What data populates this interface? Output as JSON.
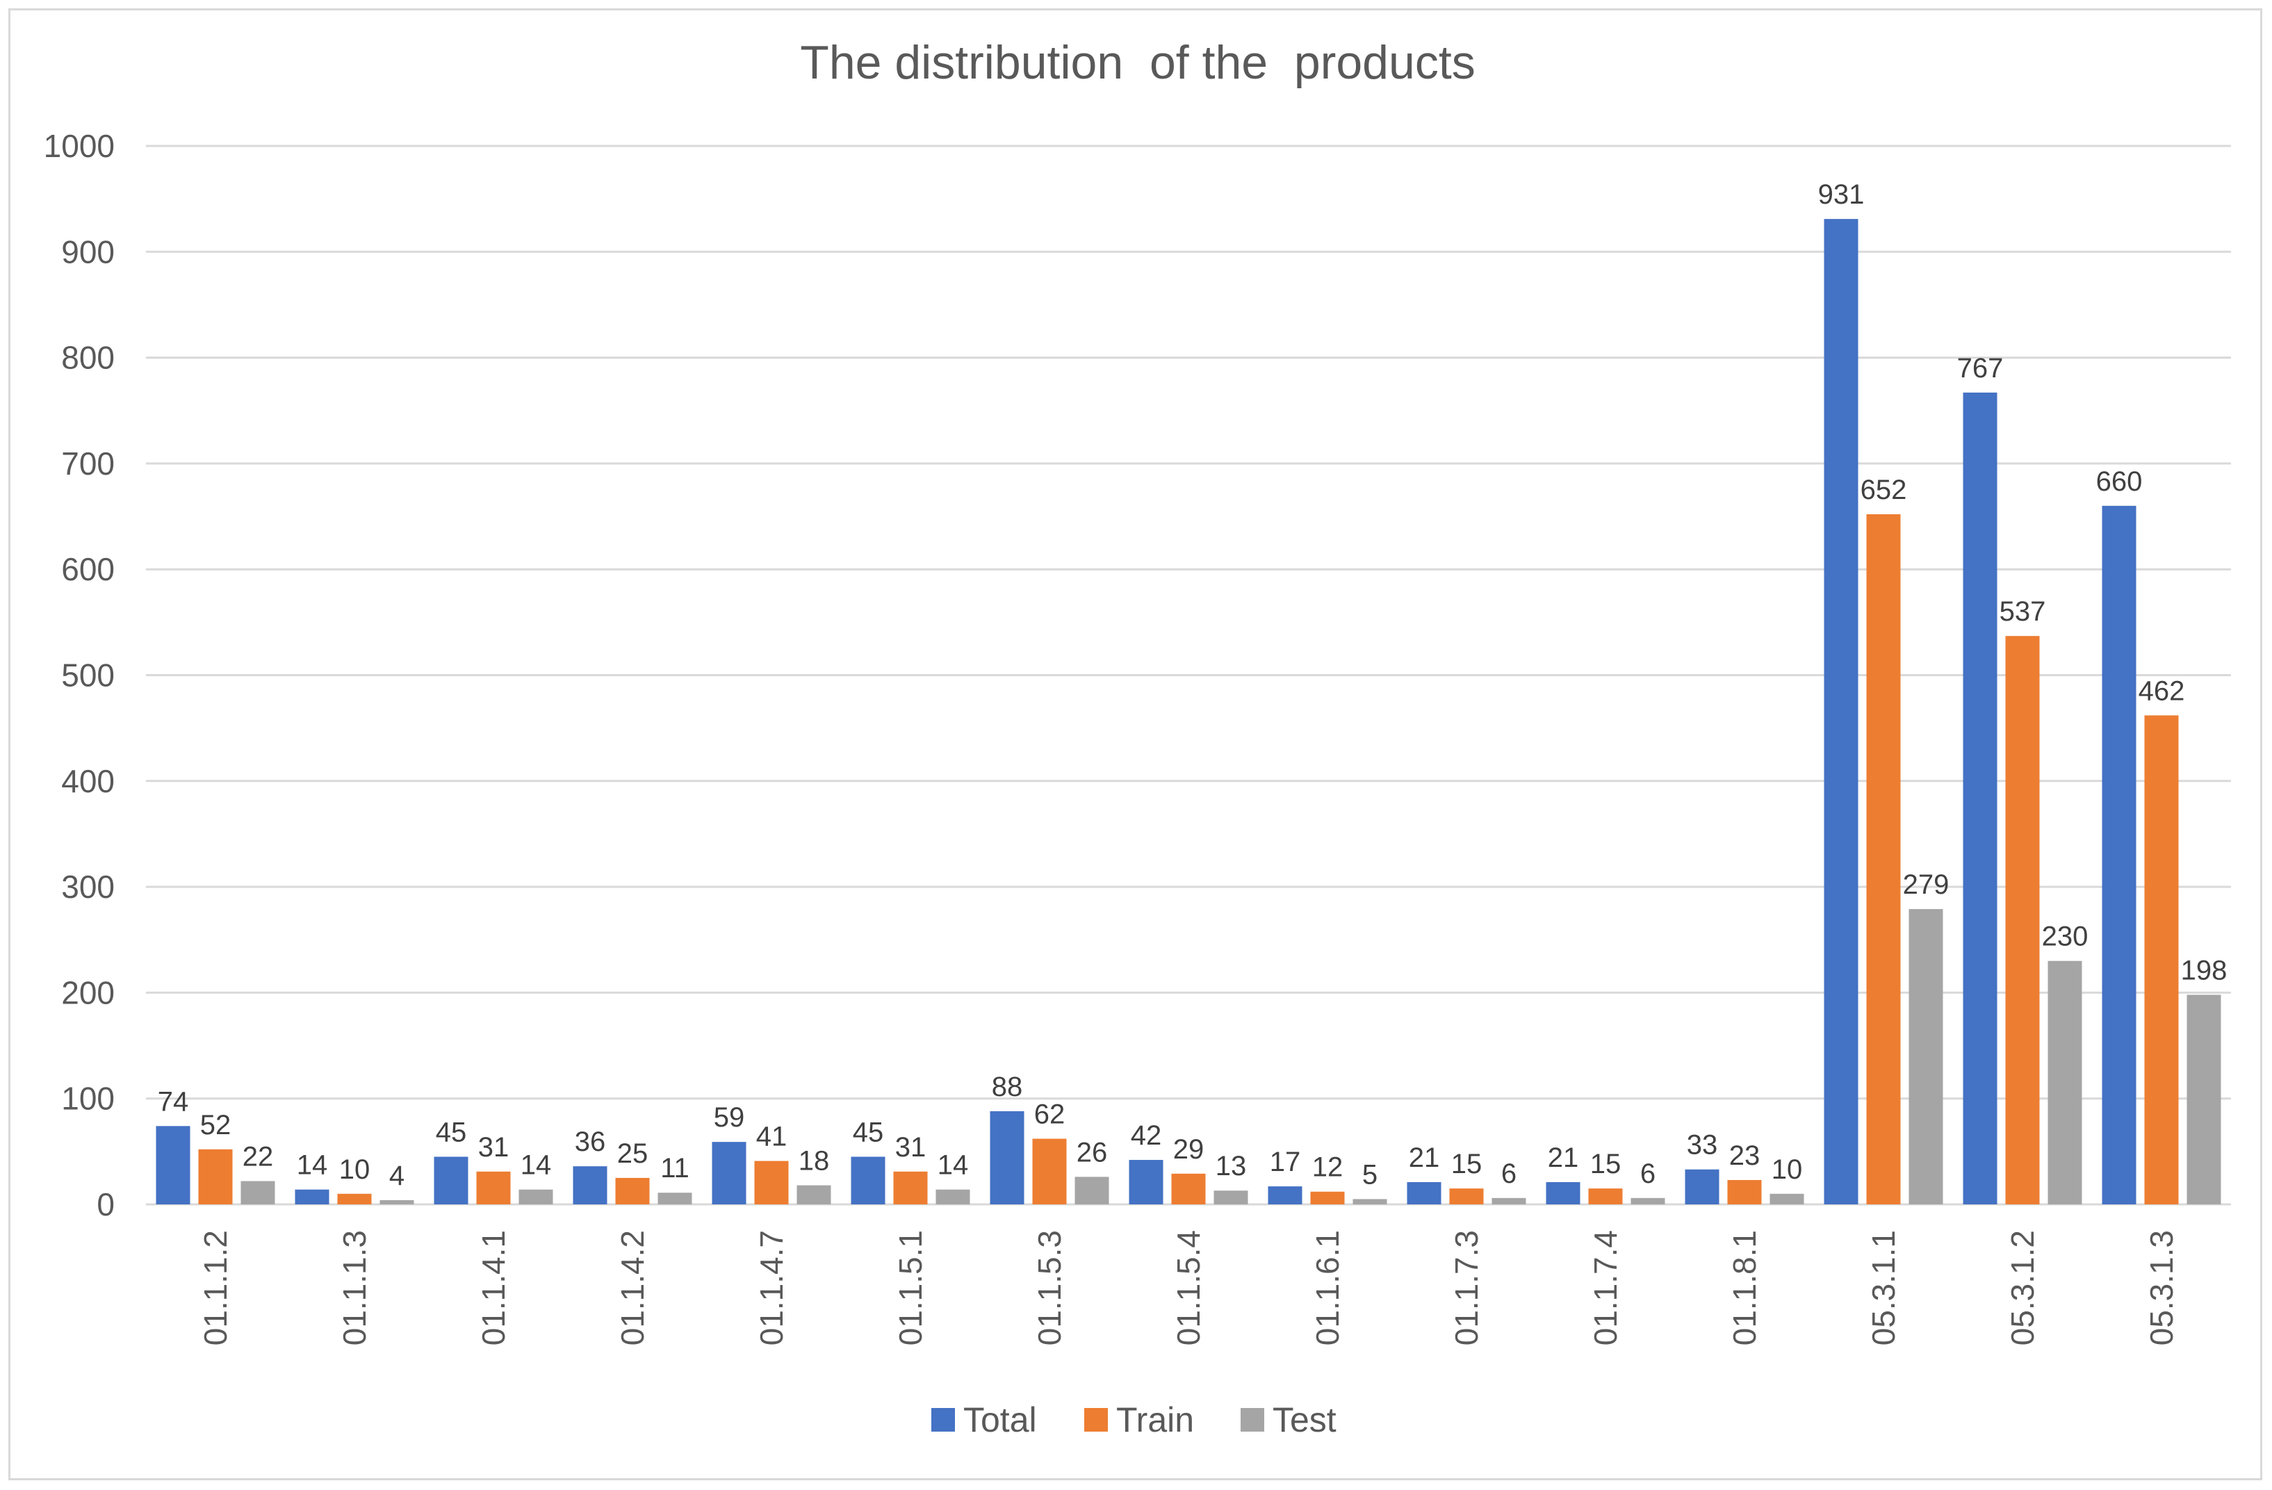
{
  "chart_data": {
    "type": "bar",
    "title": "The distribution  of the  products",
    "xlabel": "",
    "ylabel": "",
    "ylim": [
      0,
      1000
    ],
    "yticks": [
      0,
      100,
      200,
      300,
      400,
      500,
      600,
      700,
      800,
      900,
      1000
    ],
    "grid": true,
    "legend_position": "bottom",
    "categories": [
      "01.1.1.2",
      "01.1.1.3",
      "01.1.4.1",
      "01.1.4.2",
      "01.1.4.7",
      "01.1.5.1",
      "01.1.5.3",
      "01.1.5.4",
      "01.1.6.1",
      "01.1.7.3",
      "01.1.7.4",
      "01.1.8.1",
      "05.3.1.1",
      "05.3.1.2",
      "05.3.1.3"
    ],
    "series": [
      {
        "name": "Total",
        "color": "#4472c4",
        "values": [
          74,
          14,
          45,
          36,
          59,
          45,
          88,
          42,
          17,
          21,
          21,
          33,
          931,
          767,
          660
        ]
      },
      {
        "name": "Train",
        "color": "#ed7d31",
        "values": [
          52,
          10,
          31,
          25,
          41,
          31,
          62,
          29,
          12,
          15,
          15,
          23,
          652,
          537,
          462
        ]
      },
      {
        "name": "Test",
        "color": "#a5a5a5",
        "values": [
          22,
          4,
          14,
          11,
          18,
          14,
          26,
          13,
          5,
          6,
          6,
          10,
          279,
          230,
          198
        ]
      }
    ]
  }
}
